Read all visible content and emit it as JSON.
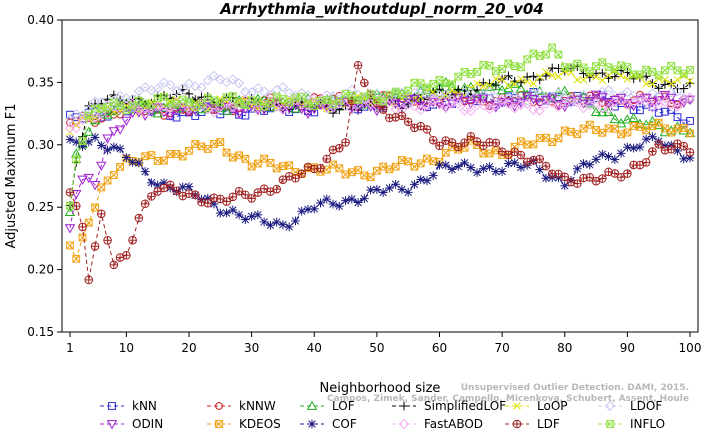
{
  "chart_data": {
    "type": "line",
    "title": "Arrhythmia_withoutdupl_norm_20_v04",
    "xlabel": "Neighborhood size",
    "ylabel": "Adjusted Maximum F1",
    "xlim": [
      1,
      100
    ],
    "ylim": [
      0.15,
      0.4
    ],
    "xticks": [
      1,
      10,
      20,
      30,
      40,
      50,
      60,
      70,
      80,
      90,
      100
    ],
    "yticks": [
      "0.15",
      "0.20",
      "0.25",
      "0.30",
      "0.35",
      "0.40"
    ],
    "legend_position": "bottom",
    "watermark": [
      "Campos, Zimek, Sander, Campello, Micenkova, Schubert, Assent, Houle",
      "Unsupervised Outlier Detection. DAMI, 2015."
    ],
    "series": [
      {
        "name": "kNN",
        "color": "#2b2bd6",
        "marker": "square",
        "knots": [
          [
            1,
            0.32
          ],
          [
            3,
            0.322
          ],
          [
            6,
            0.325
          ],
          [
            10,
            0.33
          ],
          [
            20,
            0.325
          ],
          [
            30,
            0.328
          ],
          [
            40,
            0.33
          ],
          [
            50,
            0.333
          ],
          [
            60,
            0.335
          ],
          [
            70,
            0.337
          ],
          [
            80,
            0.338
          ],
          [
            90,
            0.333
          ],
          [
            100,
            0.32
          ]
        ]
      },
      {
        "name": "kNNW",
        "color": "#d02020",
        "marker": "circle",
        "knots": [
          [
            1,
            0.318
          ],
          [
            3,
            0.32
          ],
          [
            6,
            0.323
          ],
          [
            10,
            0.328
          ],
          [
            20,
            0.328
          ],
          [
            30,
            0.333
          ],
          [
            40,
            0.335
          ],
          [
            50,
            0.336
          ],
          [
            60,
            0.336
          ],
          [
            70,
            0.336
          ],
          [
            80,
            0.336
          ],
          [
            90,
            0.336
          ],
          [
            100,
            0.336
          ]
        ]
      },
      {
        "name": "LOF",
        "color": "#20b020",
        "marker": "triangle",
        "knots": [
          [
            1,
            0.245
          ],
          [
            2,
            0.29
          ],
          [
            4,
            0.315
          ],
          [
            6,
            0.325
          ],
          [
            10,
            0.33
          ],
          [
            20,
            0.33
          ],
          [
            30,
            0.333
          ],
          [
            40,
            0.333
          ],
          [
            50,
            0.336
          ],
          [
            60,
            0.345
          ],
          [
            70,
            0.345
          ],
          [
            80,
            0.34
          ],
          [
            85,
            0.33
          ],
          [
            90,
            0.318
          ],
          [
            100,
            0.312
          ]
        ]
      },
      {
        "name": "SimplifiedLOF",
        "color": "#000000",
        "marker": "plus",
        "knots": [
          [
            1,
            0.25
          ],
          [
            2,
            0.29
          ],
          [
            4,
            0.33
          ],
          [
            6,
            0.335
          ],
          [
            10,
            0.335
          ],
          [
            20,
            0.34
          ],
          [
            30,
            0.333
          ],
          [
            40,
            0.33
          ],
          [
            50,
            0.33
          ],
          [
            60,
            0.34
          ],
          [
            70,
            0.35
          ],
          [
            80,
            0.36
          ],
          [
            90,
            0.355
          ],
          [
            100,
            0.345
          ]
        ]
      },
      {
        "name": "LoOP",
        "color": "#e0e000",
        "marker": "x",
        "knots": [
          [
            1,
            0.315
          ],
          [
            3,
            0.32
          ],
          [
            6,
            0.325
          ],
          [
            10,
            0.33
          ],
          [
            20,
            0.333
          ],
          [
            30,
            0.333
          ],
          [
            40,
            0.333
          ],
          [
            50,
            0.335
          ],
          [
            60,
            0.34
          ],
          [
            70,
            0.35
          ],
          [
            80,
            0.356
          ],
          [
            90,
            0.354
          ],
          [
            100,
            0.35
          ]
        ]
      },
      {
        "name": "LDOF",
        "color": "#c8c8f0",
        "marker": "diamond",
        "knots": [
          [
            1,
            0.32
          ],
          [
            5,
            0.33
          ],
          [
            10,
            0.34
          ],
          [
            15,
            0.345
          ],
          [
            20,
            0.348
          ],
          [
            25,
            0.352
          ],
          [
            30,
            0.345
          ],
          [
            40,
            0.338
          ],
          [
            50,
            0.34
          ],
          [
            60,
            0.34
          ],
          [
            70,
            0.338
          ],
          [
            80,
            0.338
          ],
          [
            90,
            0.34
          ],
          [
            100,
            0.338
          ]
        ]
      },
      {
        "name": "ODIN",
        "color": "#a020d0",
        "marker": "triangle-down",
        "knots": [
          [
            1,
            0.232
          ],
          [
            2,
            0.262
          ],
          [
            3,
            0.27
          ],
          [
            5,
            0.268
          ],
          [
            7,
            0.305
          ],
          [
            10,
            0.322
          ],
          [
            20,
            0.33
          ],
          [
            30,
            0.33
          ],
          [
            40,
            0.33
          ],
          [
            50,
            0.332
          ],
          [
            60,
            0.334
          ],
          [
            70,
            0.334
          ],
          [
            80,
            0.335
          ],
          [
            90,
            0.336
          ],
          [
            100,
            0.335
          ]
        ]
      },
      {
        "name": "KDEOS",
        "color": "#f0a010",
        "marker": "square-x",
        "knots": [
          [
            1,
            0.22
          ],
          [
            2,
            0.205
          ],
          [
            4,
            0.24
          ],
          [
            6,
            0.265
          ],
          [
            8,
            0.28
          ],
          [
            10,
            0.285
          ],
          [
            15,
            0.29
          ],
          [
            20,
            0.295
          ],
          [
            25,
            0.3
          ],
          [
            30,
            0.285
          ],
          [
            40,
            0.28
          ],
          [
            50,
            0.278
          ],
          [
            55,
            0.285
          ],
          [
            60,
            0.29
          ],
          [
            65,
            0.3
          ],
          [
            70,
            0.293
          ],
          [
            80,
            0.31
          ],
          [
            90,
            0.313
          ],
          [
            100,
            0.313
          ]
        ]
      },
      {
        "name": "COF",
        "color": "#1a1a80",
        "marker": "asterisk",
        "knots": [
          [
            1,
            0.3
          ],
          [
            5,
            0.305
          ],
          [
            10,
            0.29
          ],
          [
            15,
            0.27
          ],
          [
            20,
            0.262
          ],
          [
            25,
            0.25
          ],
          [
            30,
            0.24
          ],
          [
            35,
            0.236
          ],
          [
            40,
            0.25
          ],
          [
            45,
            0.255
          ],
          [
            50,
            0.262
          ],
          [
            55,
            0.266
          ],
          [
            60,
            0.28
          ],
          [
            65,
            0.283
          ],
          [
            70,
            0.28
          ],
          [
            75,
            0.285
          ],
          [
            80,
            0.268
          ],
          [
            85,
            0.29
          ],
          [
            90,
            0.295
          ],
          [
            95,
            0.305
          ],
          [
            100,
            0.29
          ]
        ]
      },
      {
        "name": "FastABOD",
        "color": "#f0b0f0",
        "marker": "diamond",
        "knots": [
          [
            1,
            0.315
          ],
          [
            5,
            0.325
          ],
          [
            10,
            0.33
          ],
          [
            20,
            0.33
          ],
          [
            30,
            0.332
          ],
          [
            40,
            0.333
          ],
          [
            50,
            0.332
          ],
          [
            60,
            0.331
          ],
          [
            70,
            0.331
          ],
          [
            80,
            0.332
          ],
          [
            90,
            0.333
          ],
          [
            100,
            0.334
          ]
        ]
      },
      {
        "name": "LDF",
        "color": "#a02020",
        "marker": "circle-plus",
        "knots": [
          [
            1,
            0.265
          ],
          [
            3,
            0.235
          ],
          [
            4,
            0.195
          ],
          [
            6,
            0.24
          ],
          [
            8,
            0.205
          ],
          [
            10,
            0.21
          ],
          [
            12,
            0.245
          ],
          [
            15,
            0.265
          ],
          [
            20,
            0.26
          ],
          [
            25,
            0.255
          ],
          [
            30,
            0.26
          ],
          [
            35,
            0.27
          ],
          [
            40,
            0.28
          ],
          [
            45,
            0.305
          ],
          [
            47,
            0.36
          ],
          [
            50,
            0.33
          ],
          [
            55,
            0.32
          ],
          [
            60,
            0.3
          ],
          [
            65,
            0.305
          ],
          [
            70,
            0.295
          ],
          [
            75,
            0.29
          ],
          [
            80,
            0.27
          ],
          [
            85,
            0.275
          ],
          [
            90,
            0.275
          ],
          [
            95,
            0.3
          ],
          [
            100,
            0.295
          ]
        ]
      },
      {
        "name": "INFLO",
        "color": "#90e040",
        "marker": "square-x",
        "knots": [
          [
            1,
            0.25
          ],
          [
            2,
            0.29
          ],
          [
            4,
            0.32
          ],
          [
            6,
            0.33
          ],
          [
            10,
            0.333
          ],
          [
            20,
            0.335
          ],
          [
            30,
            0.335
          ],
          [
            40,
            0.335
          ],
          [
            50,
            0.338
          ],
          [
            60,
            0.35
          ],
          [
            65,
            0.358
          ],
          [
            70,
            0.362
          ],
          [
            75,
            0.37
          ],
          [
            78,
            0.374
          ],
          [
            80,
            0.365
          ],
          [
            90,
            0.36
          ],
          [
            100,
            0.358
          ]
        ]
      }
    ]
  }
}
